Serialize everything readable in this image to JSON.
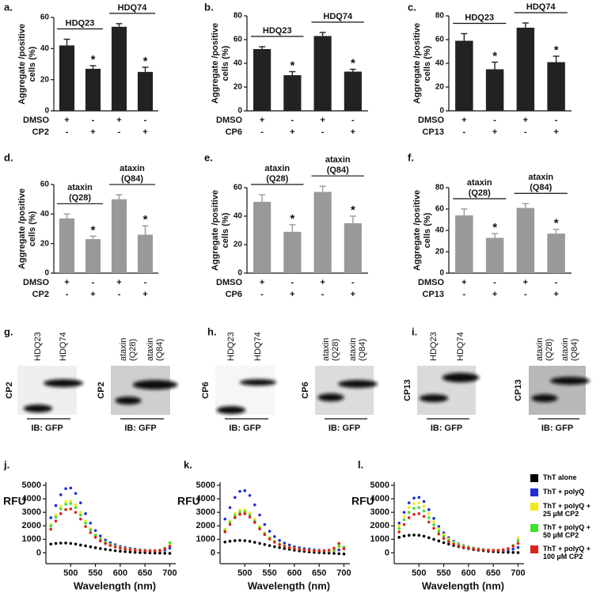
{
  "chart_data": [
    {
      "type": "bar",
      "label": "a.",
      "y_label": [
        "Aggregate /positive",
        "cells (%)"
      ],
      "groups": [
        [
          "HDQ23"
        ],
        [
          "HDQ74"
        ]
      ],
      "values": [
        42,
        27,
        54,
        25
      ],
      "errors": [
        4,
        2,
        2,
        3
      ],
      "annotations": [
        null,
        "*",
        null,
        "*"
      ],
      "color": "#222222",
      "treatments": [
        {
          "name": "DMSO",
          "signs": [
            "+",
            "-",
            "+",
            "-"
          ]
        },
        {
          "name": "CP2",
          "signs": [
            "-",
            "+",
            "-",
            "+"
          ]
        }
      ],
      "ylim": [
        0,
        60
      ],
      "yticks": [
        0,
        20,
        40,
        60
      ]
    },
    {
      "type": "bar",
      "label": "b.",
      "y_label": [
        "Aggregate /positive",
        "cells (%)"
      ],
      "groups": [
        [
          "HDQ23"
        ],
        [
          "HDQ74"
        ]
      ],
      "values": [
        52,
        30,
        63,
        33
      ],
      "errors": [
        2,
        3,
        3,
        2
      ],
      "annotations": [
        null,
        "*",
        null,
        "*"
      ],
      "color": "#222222",
      "treatments": [
        {
          "name": "DMSO",
          "signs": [
            "+",
            "-",
            "+",
            "-"
          ]
        },
        {
          "name": "CP6",
          "signs": [
            "-",
            "+",
            "-",
            "+"
          ]
        }
      ],
      "ylim": [
        0,
        80
      ],
      "yticks": [
        0,
        20,
        40,
        60,
        80
      ]
    },
    {
      "type": "bar",
      "label": "c.",
      "y_label": [
        "Aggregate /positive",
        "cells (%)"
      ],
      "groups": [
        [
          "HDQ23"
        ],
        [
          "HDQ74"
        ]
      ],
      "values": [
        59,
        35,
        70,
        41
      ],
      "errors": [
        6,
        6,
        4,
        5
      ],
      "annotations": [
        null,
        "*",
        null,
        "*"
      ],
      "color": "#222222",
      "treatments": [
        {
          "name": "DMSO",
          "signs": [
            "+",
            "-",
            "+",
            "-"
          ]
        },
        {
          "name": "CP13",
          "signs": [
            "-",
            "+",
            "-",
            "+"
          ]
        }
      ],
      "ylim": [
        0,
        80
      ],
      "yticks": [
        0,
        20,
        40,
        60,
        80
      ]
    },
    {
      "type": "bar",
      "label": "d.",
      "y_label": [
        "Aggregate /positive",
        "cells (%)"
      ],
      "groups": [
        [
          "ataxin",
          "(Q28)"
        ],
        [
          "ataxin",
          "(Q84)"
        ]
      ],
      "values": [
        37,
        23,
        50,
        26
      ],
      "errors": [
        3,
        2,
        3,
        6
      ],
      "annotations": [
        null,
        "*",
        null,
        "*"
      ],
      "color": "#999999",
      "treatments": [
        {
          "name": "DMSO",
          "signs": [
            "+",
            "-",
            "+",
            "-"
          ]
        },
        {
          "name": "CP2",
          "signs": [
            "-",
            "+",
            "-",
            "+"
          ]
        }
      ],
      "ylim": [
        0,
        60
      ],
      "yticks": [
        0,
        20,
        40,
        60
      ]
    },
    {
      "type": "bar",
      "label": "e.",
      "y_label": [
        "Aggregate /positive",
        "cells (%)"
      ],
      "groups": [
        [
          "ataxin",
          "(Q28)"
        ],
        [
          "ataxin",
          "(Q84)"
        ]
      ],
      "values": [
        50,
        29,
        57,
        35
      ],
      "errors": [
        5,
        5,
        4,
        5
      ],
      "annotations": [
        null,
        "*",
        null,
        "*"
      ],
      "color": "#999999",
      "treatments": [
        {
          "name": "DMSO",
          "signs": [
            "+",
            "-",
            "+",
            "-"
          ]
        },
        {
          "name": "CP6",
          "signs": [
            "-",
            "+",
            "-",
            "+"
          ]
        }
      ],
      "ylim": [
        0,
        60
      ],
      "yticks": [
        0,
        20,
        40,
        60
      ]
    },
    {
      "type": "bar",
      "label": "f.",
      "y_label": [
        "Aggregate /positive",
        "cells (%)"
      ],
      "groups": [
        [
          "ataxin",
          "(Q28)"
        ],
        [
          "ataxin",
          "(Q84)"
        ]
      ],
      "values": [
        54,
        33,
        61,
        37
      ],
      "errors": [
        6,
        4,
        4,
        4
      ],
      "annotations": [
        null,
        "*",
        null,
        "*"
      ],
      "color": "#999999",
      "treatments": [
        {
          "name": "DMSO",
          "signs": [
            "+",
            "-",
            "+",
            "-"
          ]
        },
        {
          "name": "CP13",
          "signs": [
            "-",
            "+",
            "-",
            "+"
          ]
        }
      ],
      "ylim": [
        0,
        80
      ],
      "yticks": [
        0,
        20,
        40,
        60,
        80
      ]
    },
    {
      "type": "scatter",
      "label": "j.",
      "y_label": "RFU",
      "x_label": "Wavelength (nm)",
      "x": [
        460,
        470,
        480,
        490,
        500,
        510,
        520,
        530,
        540,
        550,
        560,
        570,
        580,
        590,
        600,
        610,
        620,
        630,
        640,
        650,
        660,
        670,
        680,
        690,
        700
      ],
      "xlim": [
        450,
        712
      ],
      "xticks": [
        500,
        550,
        600,
        650,
        700
      ],
      "ylim": [
        -800,
        5000
      ],
      "yticks": [
        0,
        1000,
        2000,
        3000,
        4000,
        5000
      ],
      "series": [
        {
          "name": "ThT alone",
          "color": "#000000",
          "values": [
            650,
            700,
            720,
            730,
            700,
            650,
            580,
            520,
            450,
            380,
            320,
            260,
            210,
            160,
            120,
            90,
            60,
            40,
            20,
            10,
            0,
            -10,
            -20,
            -30,
            -40
          ]
        },
        {
          "name": "ThT + polyQ",
          "color": "#1f2ed6",
          "values": [
            2600,
            3500,
            4300,
            4750,
            4800,
            4400,
            3700,
            2900,
            2200,
            1650,
            1250,
            950,
            750,
            600,
            480,
            400,
            330,
            280,
            230,
            200,
            180,
            170,
            170,
            200,
            350
          ]
        },
        {
          "name": "ThT + polyQ + 25 µM CP2",
          "color": "#f2ea1a",
          "values": [
            2100,
            2800,
            3450,
            3800,
            3850,
            3550,
            3000,
            2350,
            1800,
            1350,
            1050,
            800,
            620,
            500,
            400,
            330,
            270,
            230,
            190,
            170,
            160,
            160,
            180,
            300,
            700
          ]
        },
        {
          "name": "ThT + polyQ + 50 µM CP2",
          "color": "#3ee02a",
          "values": [
            2000,
            2650,
            3250,
            3600,
            3650,
            3350,
            2800,
            2200,
            1700,
            1300,
            1000,
            780,
            600,
            480,
            390,
            320,
            260,
            220,
            180,
            160,
            150,
            160,
            200,
            350,
            750
          ]
        },
        {
          "name": "ThT + polyQ + 100 µM CP2",
          "color": "#e0201c",
          "values": [
            1750,
            2350,
            2900,
            3200,
            3250,
            3000,
            2500,
            1950,
            1500,
            1150,
            880,
            690,
            540,
            430,
            350,
            290,
            240,
            200,
            170,
            150,
            140,
            150,
            180,
            300,
            500
          ]
        }
      ]
    },
    {
      "type": "scatter",
      "label": "k.",
      "y_label": "RFU",
      "x_label": "Wavelength (nm)",
      "x": [
        460,
        470,
        480,
        490,
        500,
        510,
        520,
        530,
        540,
        550,
        560,
        570,
        580,
        590,
        600,
        610,
        620,
        630,
        640,
        650,
        660,
        670,
        680,
        690,
        700
      ],
      "xlim": [
        450,
        712
      ],
      "xticks": [
        500,
        550,
        600,
        650,
        700
      ],
      "ylim": [
        -800,
        5000
      ],
      "yticks": [
        0,
        1000,
        2000,
        3000,
        4000,
        5000
      ],
      "series": [
        {
          "name": "ThT alone",
          "color": "#000000",
          "values": [
            800,
            860,
            900,
            920,
            900,
            850,
            780,
            700,
            620,
            540,
            460,
            390,
            320,
            260,
            200,
            150,
            110,
            70,
            40,
            20,
            0,
            -20,
            -40,
            -60,
            -80
          ]
        },
        {
          "name": "ThT + polyQ",
          "color": "#1f2ed6",
          "values": [
            2500,
            3350,
            4100,
            4550,
            4600,
            4250,
            3550,
            2800,
            2100,
            1600,
            1200,
            920,
            720,
            580,
            460,
            380,
            320,
            270,
            220,
            190,
            170,
            160,
            170,
            220,
            400
          ]
        },
        {
          "name": "ThT + polyQ + 25 µM CP2",
          "color": "#f2ea1a",
          "values": [
            1750,
            2350,
            2900,
            3150,
            3200,
            2950,
            2500,
            1950,
            1500,
            1130,
            870,
            670,
            520,
            420,
            340,
            280,
            230,
            190,
            160,
            140,
            140,
            150,
            200,
            400,
            300
          ]
        },
        {
          "name": "ThT + polyQ + 50 µM CP2",
          "color": "#3ee02a",
          "values": [
            1650,
            2250,
            2750,
            3000,
            3050,
            2800,
            2350,
            1850,
            1420,
            1070,
            830,
            640,
            500,
            400,
            330,
            270,
            220,
            190,
            160,
            140,
            140,
            170,
            250,
            500,
            400
          ]
        },
        {
          "name": "ThT + polyQ + 100 µM CP2",
          "color": "#e0201c",
          "values": [
            1550,
            2100,
            2600,
            2850,
            2900,
            2650,
            2250,
            1770,
            1350,
            1020,
            790,
            610,
            480,
            380,
            310,
            260,
            210,
            180,
            160,
            140,
            150,
            200,
            350,
            700,
            300
          ]
        }
      ]
    },
    {
      "type": "scatter",
      "label": "l.",
      "y_label": "RFU",
      "x_label": "Wavelength (nm)",
      "legend": "right",
      "x": [
        460,
        470,
        480,
        490,
        500,
        510,
        520,
        530,
        540,
        550,
        560,
        570,
        580,
        590,
        600,
        610,
        620,
        630,
        640,
        650,
        660,
        670,
        680,
        690,
        700
      ],
      "xlim": [
        450,
        712
      ],
      "xticks": [
        500,
        550,
        600,
        650,
        700
      ],
      "ylim": [
        -800,
        5000
      ],
      "yticks": [
        0,
        1000,
        2000,
        3000,
        4000,
        5000
      ],
      "series": [
        {
          "name": "ThT alone",
          "color": "#000000",
          "values": [
            1150,
            1250,
            1300,
            1320,
            1300,
            1230,
            1120,
            1000,
            880,
            760,
            650,
            550,
            460,
            380,
            310,
            250,
            200,
            160,
            120,
            90,
            70,
            50,
            40,
            30,
            20
          ]
        },
        {
          "name": "ThT + polyQ",
          "color": "#1f2ed6",
          "values": [
            2200,
            3000,
            3700,
            4050,
            4100,
            3800,
            3200,
            2550,
            1950,
            1480,
            1120,
            860,
            670,
            540,
            440,
            360,
            300,
            260,
            220,
            200,
            190,
            190,
            210,
            280,
            400
          ]
        },
        {
          "name": "ThT + polyQ + 25 µM CP2",
          "color": "#f2ea1a",
          "values": [
            2000,
            2700,
            3350,
            3650,
            3700,
            3450,
            2900,
            2300,
            1780,
            1350,
            1030,
            790,
            620,
            500,
            410,
            340,
            290,
            250,
            220,
            200,
            200,
            220,
            300,
            500,
            1100
          ]
        },
        {
          "name": "ThT + polyQ + 50 µM CP2",
          "color": "#3ee02a",
          "values": [
            1800,
            2450,
            3000,
            3300,
            3350,
            3100,
            2600,
            2080,
            1600,
            1220,
            940,
            730,
            570,
            460,
            380,
            320,
            270,
            230,
            200,
            190,
            190,
            220,
            300,
            550,
            900
          ]
        },
        {
          "name": "ThT + polyQ + 100 µM CP2",
          "color": "#e0201c",
          "values": [
            1550,
            2100,
            2600,
            2850,
            2900,
            2700,
            2280,
            1820,
            1400,
            1070,
            830,
            650,
            510,
            410,
            340,
            290,
            240,
            210,
            190,
            180,
            190,
            230,
            320,
            500,
            700
          ]
        }
      ]
    }
  ],
  "blots": [
    {
      "label": "g.",
      "blots": [
        {
          "lanes": [
            [
              "HDQ23"
            ],
            [
              "HDQ74"
            ]
          ],
          "antibody": "CP2",
          "ib": "IB: GFP"
        },
        {
          "lanes": [
            [
              "ataxin",
              "(Q28)"
            ],
            [
              "ataxin",
              "(Q84)"
            ]
          ],
          "antibody": "CP2",
          "ib": "IB: GFP"
        }
      ]
    },
    {
      "label": "h.",
      "blots": [
        {
          "lanes": [
            [
              "HDQ23"
            ],
            [
              "HDQ74"
            ]
          ],
          "antibody": "CP6",
          "ib": "IB: GFP"
        },
        {
          "lanes": [
            [
              "ataxin",
              "(Q28)"
            ],
            [
              "ataxin",
              "(Q84)"
            ]
          ],
          "antibody": "CP6",
          "ib": "IB: GFP"
        }
      ]
    },
    {
      "label": "i.",
      "blots": [
        {
          "lanes": [
            [
              "HDQ23"
            ],
            [
              "HDQ74"
            ]
          ],
          "antibody": "CP13",
          "ib": "IB: GFP"
        },
        {
          "lanes": [
            [
              "ataxin",
              "(Q28)"
            ],
            [
              "ataxin",
              "(Q84)"
            ]
          ],
          "antibody": "CP13",
          "ib": "IB: GFP"
        }
      ]
    }
  ]
}
